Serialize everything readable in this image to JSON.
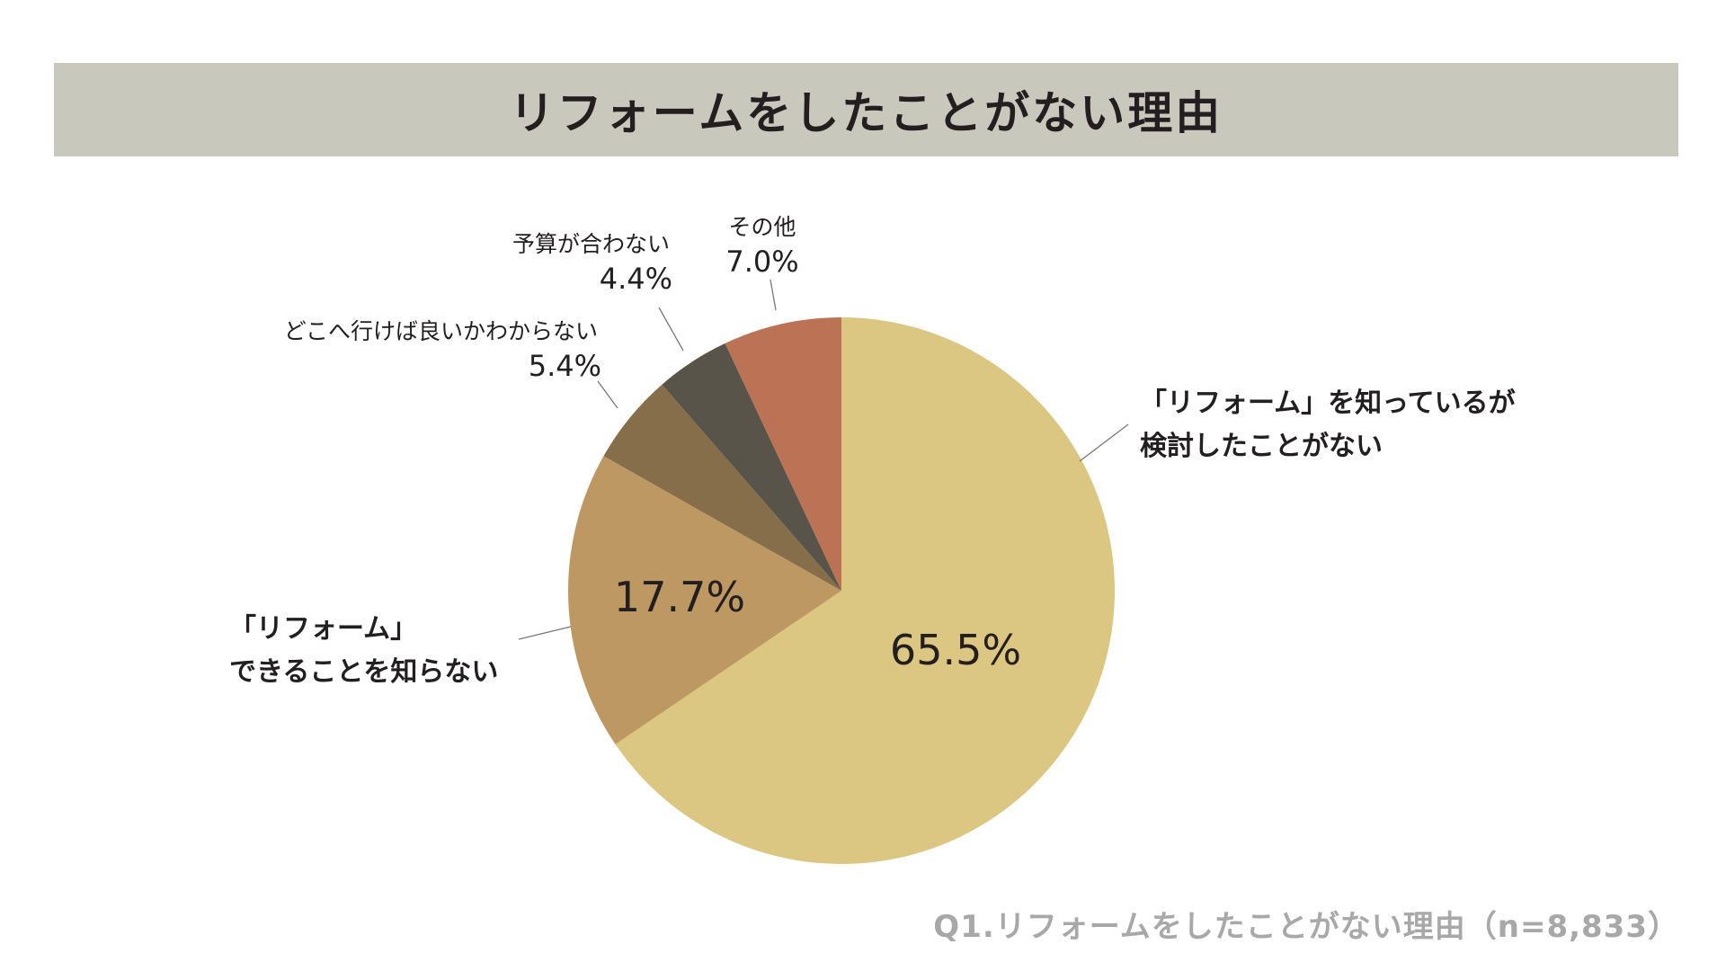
{
  "chart_data": {
    "type": "pie",
    "title": "リフォームをしたことがない理由",
    "footnote": "Q1.リフォームをしたことがない理由（n=8,833）",
    "slices": [
      {
        "label_lines": [
          "「リフォーム」を知っているが",
          "検討したことがない"
        ],
        "value": 65.5,
        "display": "65.5%",
        "color": "#dbc781"
      },
      {
        "label_lines": [
          "「リフォーム」",
          "できることを知らない"
        ],
        "value": 17.7,
        "display": "17.7%",
        "color": "#bd9862"
      },
      {
        "label_lines": [
          "どこへ行けば良いかわからない"
        ],
        "value": 5.4,
        "display": "5.4%",
        "color": "#876e4a"
      },
      {
        "label_lines": [
          "予算が合わない"
        ],
        "value": 4.4,
        "display": "4.4%",
        "color": "#59544a"
      },
      {
        "label_lines": [
          "その他"
        ],
        "value": 7.0,
        "display": "7.0%",
        "color": "#bc7254"
      }
    ]
  }
}
